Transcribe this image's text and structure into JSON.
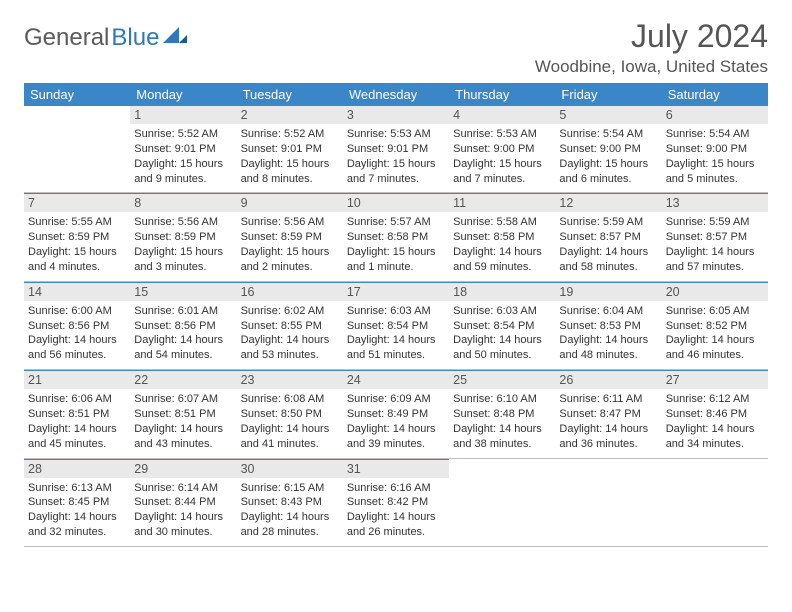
{
  "brand": {
    "part1": "General",
    "part2": "Blue"
  },
  "colors": {
    "header_bg": "#3b86c6",
    "header_text": "#ffffff",
    "daynum_bg": "#e9e9e9",
    "text": "#333333",
    "title": "#555555",
    "rule": "#bfbfbf"
  },
  "title": "July 2024",
  "location": "Woodbine, Iowa, United States",
  "weekdays": [
    "Sunday",
    "Monday",
    "Tuesday",
    "Wednesday",
    "Thursday",
    "Friday",
    "Saturday"
  ],
  "weeks": [
    [
      {
        "n": "",
        "sunrise": "",
        "sunset": "",
        "daylight": ""
      },
      {
        "n": "1",
        "sunrise": "Sunrise: 5:52 AM",
        "sunset": "Sunset: 9:01 PM",
        "daylight": "Daylight: 15 hours and 9 minutes."
      },
      {
        "n": "2",
        "sunrise": "Sunrise: 5:52 AM",
        "sunset": "Sunset: 9:01 PM",
        "daylight": "Daylight: 15 hours and 8 minutes."
      },
      {
        "n": "3",
        "sunrise": "Sunrise: 5:53 AM",
        "sunset": "Sunset: 9:01 PM",
        "daylight": "Daylight: 15 hours and 7 minutes."
      },
      {
        "n": "4",
        "sunrise": "Sunrise: 5:53 AM",
        "sunset": "Sunset: 9:00 PM",
        "daylight": "Daylight: 15 hours and 7 minutes."
      },
      {
        "n": "5",
        "sunrise": "Sunrise: 5:54 AM",
        "sunset": "Sunset: 9:00 PM",
        "daylight": "Daylight: 15 hours and 6 minutes."
      },
      {
        "n": "6",
        "sunrise": "Sunrise: 5:54 AM",
        "sunset": "Sunset: 9:00 PM",
        "daylight": "Daylight: 15 hours and 5 minutes."
      }
    ],
    [
      {
        "n": "7",
        "sunrise": "Sunrise: 5:55 AM",
        "sunset": "Sunset: 8:59 PM",
        "daylight": "Daylight: 15 hours and 4 minutes."
      },
      {
        "n": "8",
        "sunrise": "Sunrise: 5:56 AM",
        "sunset": "Sunset: 8:59 PM",
        "daylight": "Daylight: 15 hours and 3 minutes."
      },
      {
        "n": "9",
        "sunrise": "Sunrise: 5:56 AM",
        "sunset": "Sunset: 8:59 PM",
        "daylight": "Daylight: 15 hours and 2 minutes."
      },
      {
        "n": "10",
        "sunrise": "Sunrise: 5:57 AM",
        "sunset": "Sunset: 8:58 PM",
        "daylight": "Daylight: 15 hours and 1 minute."
      },
      {
        "n": "11",
        "sunrise": "Sunrise: 5:58 AM",
        "sunset": "Sunset: 8:58 PM",
        "daylight": "Daylight: 14 hours and 59 minutes."
      },
      {
        "n": "12",
        "sunrise": "Sunrise: 5:59 AM",
        "sunset": "Sunset: 8:57 PM",
        "daylight": "Daylight: 14 hours and 58 minutes."
      },
      {
        "n": "13",
        "sunrise": "Sunrise: 5:59 AM",
        "sunset": "Sunset: 8:57 PM",
        "daylight": "Daylight: 14 hours and 57 minutes."
      }
    ],
    [
      {
        "n": "14",
        "sunrise": "Sunrise: 6:00 AM",
        "sunset": "Sunset: 8:56 PM",
        "daylight": "Daylight: 14 hours and 56 minutes."
      },
      {
        "n": "15",
        "sunrise": "Sunrise: 6:01 AM",
        "sunset": "Sunset: 8:56 PM",
        "daylight": "Daylight: 14 hours and 54 minutes."
      },
      {
        "n": "16",
        "sunrise": "Sunrise: 6:02 AM",
        "sunset": "Sunset: 8:55 PM",
        "daylight": "Daylight: 14 hours and 53 minutes."
      },
      {
        "n": "17",
        "sunrise": "Sunrise: 6:03 AM",
        "sunset": "Sunset: 8:54 PM",
        "daylight": "Daylight: 14 hours and 51 minutes."
      },
      {
        "n": "18",
        "sunrise": "Sunrise: 6:03 AM",
        "sunset": "Sunset: 8:54 PM",
        "daylight": "Daylight: 14 hours and 50 minutes."
      },
      {
        "n": "19",
        "sunrise": "Sunrise: 6:04 AM",
        "sunset": "Sunset: 8:53 PM",
        "daylight": "Daylight: 14 hours and 48 minutes."
      },
      {
        "n": "20",
        "sunrise": "Sunrise: 6:05 AM",
        "sunset": "Sunset: 8:52 PM",
        "daylight": "Daylight: 14 hours and 46 minutes."
      }
    ],
    [
      {
        "n": "21",
        "sunrise": "Sunrise: 6:06 AM",
        "sunset": "Sunset: 8:51 PM",
        "daylight": "Daylight: 14 hours and 45 minutes."
      },
      {
        "n": "22",
        "sunrise": "Sunrise: 6:07 AM",
        "sunset": "Sunset: 8:51 PM",
        "daylight": "Daylight: 14 hours and 43 minutes."
      },
      {
        "n": "23",
        "sunrise": "Sunrise: 6:08 AM",
        "sunset": "Sunset: 8:50 PM",
        "daylight": "Daylight: 14 hours and 41 minutes."
      },
      {
        "n": "24",
        "sunrise": "Sunrise: 6:09 AM",
        "sunset": "Sunset: 8:49 PM",
        "daylight": "Daylight: 14 hours and 39 minutes."
      },
      {
        "n": "25",
        "sunrise": "Sunrise: 6:10 AM",
        "sunset": "Sunset: 8:48 PM",
        "daylight": "Daylight: 14 hours and 38 minutes."
      },
      {
        "n": "26",
        "sunrise": "Sunrise: 6:11 AM",
        "sunset": "Sunset: 8:47 PM",
        "daylight": "Daylight: 14 hours and 36 minutes."
      },
      {
        "n": "27",
        "sunrise": "Sunrise: 6:12 AM",
        "sunset": "Sunset: 8:46 PM",
        "daylight": "Daylight: 14 hours and 34 minutes."
      }
    ],
    [
      {
        "n": "28",
        "sunrise": "Sunrise: 6:13 AM",
        "sunset": "Sunset: 8:45 PM",
        "daylight": "Daylight: 14 hours and 32 minutes."
      },
      {
        "n": "29",
        "sunrise": "Sunrise: 6:14 AM",
        "sunset": "Sunset: 8:44 PM",
        "daylight": "Daylight: 14 hours and 30 minutes."
      },
      {
        "n": "30",
        "sunrise": "Sunrise: 6:15 AM",
        "sunset": "Sunset: 8:43 PM",
        "daylight": "Daylight: 14 hours and 28 minutes."
      },
      {
        "n": "31",
        "sunrise": "Sunrise: 6:16 AM",
        "sunset": "Sunset: 8:42 PM",
        "daylight": "Daylight: 14 hours and 26 minutes."
      },
      {
        "n": "",
        "sunrise": "",
        "sunset": "",
        "daylight": ""
      },
      {
        "n": "",
        "sunrise": "",
        "sunset": "",
        "daylight": ""
      },
      {
        "n": "",
        "sunrise": "",
        "sunset": "",
        "daylight": ""
      }
    ]
  ]
}
